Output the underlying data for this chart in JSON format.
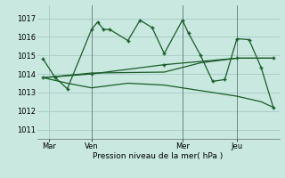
{
  "background_color": "#c8e8e0",
  "grid_color": "#a8c8c8",
  "line_color": "#1a5c28",
  "xlabel": "Pression niveau de la mer( hPa )",
  "ylim": [
    1010.5,
    1017.7
  ],
  "yticks": [
    1011,
    1012,
    1013,
    1014,
    1015,
    1016,
    1017
  ],
  "day_labels": [
    "Mar",
    "Ven",
    "Mer",
    "Jeu"
  ],
  "day_positions": [
    2,
    9,
    24,
    33
  ],
  "vline_positions": [
    9,
    24,
    33
  ],
  "xlim": [
    0,
    40
  ],
  "lines": [
    {
      "x": [
        1,
        3,
        5,
        9,
        10,
        11,
        12,
        15,
        17,
        19,
        21,
        24,
        25,
        27,
        29,
        31,
        33,
        35,
        37,
        39
      ],
      "y": [
        1014.8,
        1013.8,
        1013.2,
        1016.4,
        1016.8,
        1016.4,
        1016.4,
        1015.8,
        1016.9,
        1016.5,
        1015.1,
        1016.9,
        1016.2,
        1015.0,
        1013.6,
        1013.7,
        1015.9,
        1015.85,
        1014.35,
        1012.2
      ],
      "marker": true
    },
    {
      "x": [
        1,
        9,
        21,
        33,
        39
      ],
      "y": [
        1013.8,
        1014.0,
        1014.5,
        1014.85,
        1014.85
      ],
      "marker": true
    },
    {
      "x": [
        1,
        5,
        9,
        15,
        21,
        27,
        33,
        37,
        39
      ],
      "y": [
        1013.8,
        1013.5,
        1013.25,
        1013.5,
        1013.4,
        1013.1,
        1012.8,
        1012.5,
        1012.2
      ],
      "marker": false
    },
    {
      "x": [
        1,
        9,
        21,
        27,
        33,
        39
      ],
      "y": [
        1013.8,
        1014.05,
        1014.1,
        1014.6,
        1014.85,
        1014.85
      ],
      "marker": false
    }
  ]
}
